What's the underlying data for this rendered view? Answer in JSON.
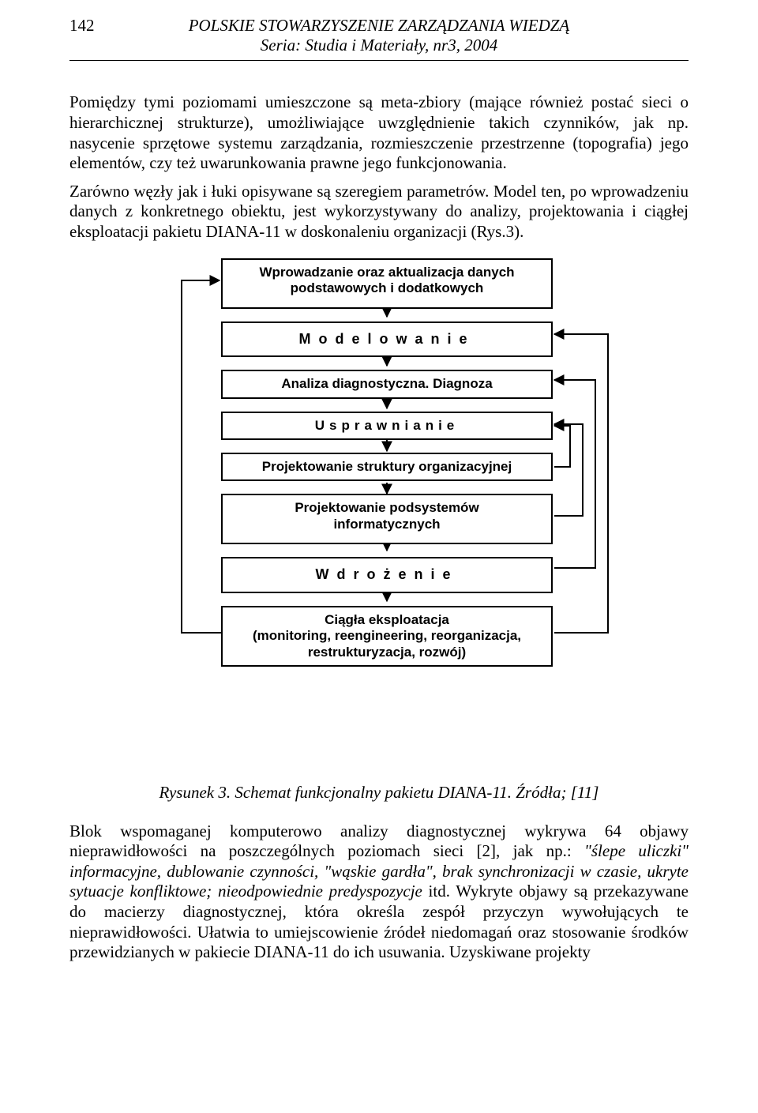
{
  "header": {
    "page_number": "142",
    "line1": "POLSKIE STOWARZYSZENIE ZARZĄDZANIA WIEDZĄ",
    "line2": "Seria: Studia i Materiały, nr3, 2004"
  },
  "paragraph1": "Pomiędzy tymi poziomami umieszczone są meta-zbiory (mające również postać sieci o hierarchicznej strukturze), umożliwiające uwzględnienie takich czynników, jak np. nasycenie sprzętowe systemu zarządzania, rozmieszczenie przestrzenne (topografia) jego elementów, czy też uwarunkowania prawne jego funkcjonowania.",
  "paragraph2": "Zarówno węzły jak i łuki opisywane są szeregiem parametrów. Model ten, po wprowadzeniu danych z konkretnego obiektu, jest wykorzystywany do analizy, projektowania i ciągłej eksploatacji pakietu DIANA-11 w doskonaleniu organizacji (Rys.3).",
  "diagram": {
    "boxes": [
      {
        "id": "b1",
        "lines": [
          "Wprowadzanie oraz aktualizacja danych",
          "podstawowych i dodatkowych"
        ],
        "style": "tall1"
      },
      {
        "id": "b2",
        "lines": [
          "Modelowanie"
        ],
        "style": "wide-letters"
      },
      {
        "id": "b3",
        "lines": [
          "Analiza diagnostyczna. Diagnoza"
        ],
        "style": ""
      },
      {
        "id": "b4",
        "lines": [
          "Usprawnianie"
        ],
        "style": "small-letters"
      },
      {
        "id": "b5",
        "lines": [
          "Projektowanie struktury organizacyjnej"
        ],
        "style": ""
      },
      {
        "id": "b6",
        "lines": [
          "Projektowanie podsystemów",
          "informatycznych"
        ],
        "style": "tall1"
      },
      {
        "id": "b7",
        "lines": [
          "Wdrożenie"
        ],
        "style": "wide-letters"
      },
      {
        "id": "b8",
        "lines": [
          "Ciągła eksploatacja",
          "(monitoring, reengineering, reorganizacja,",
          "restrukturyzacja, rozwój)"
        ],
        "style": "tall1"
      }
    ],
    "colors": {
      "stroke": "#000000",
      "bg": "#ffffff"
    }
  },
  "caption": "Rysunek 3. Schemat funkcjonalny pakietu DIANA-11. Źródła;  [11]",
  "paragraph3_parts": {
    "a": "Blok wspomaganej komputerowo analizy diagnostycznej wykrywa 64 objawy nieprawidłowości na poszczególnych poziomach sieci [2], jak np.: ",
    "b": "\"ślepe uliczki\" informacyjne, dublowanie czynności, \"wąskie gardła\", brak synchronizacji w czasie, ukryte sytuacje konfliktowe; nieodpowiednie predyspozycje",
    "c": " itd. Wykryte objawy są przekazywane do macierzy diagnostycznej, która określa zespół przyczyn wywołujących te nieprawidłowości. Ułatwia to umiejscowienie źródeł niedomagań oraz stosowanie środków przewidzianych w pakiecie DIANA-11 do ich usuwania. Uzyskiwane projekty"
  }
}
